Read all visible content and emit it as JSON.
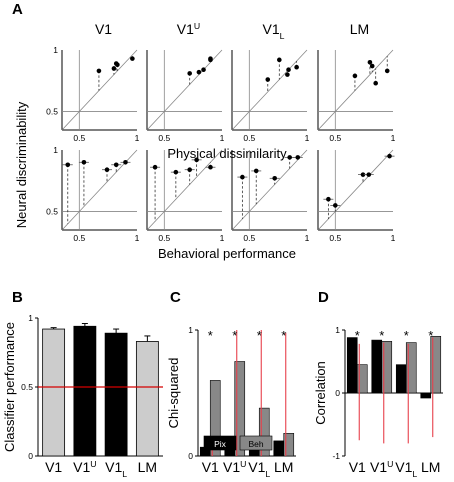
{
  "panel_letters": [
    "A",
    "B",
    "C",
    "D"
  ],
  "chart_data": [
    {
      "panel": "A",
      "type": "scatter",
      "area_titles": [
        "V1",
        "V1U",
        "V1L",
        "LM"
      ],
      "rows": [
        {
          "xlabel": "Physical dissimilarity",
          "xlim": [
            0.35,
            1.0
          ],
          "ylim": [
            0.35,
            1.0
          ],
          "xticks": [
            "0.5",
            "1"
          ],
          "yticks": [
            "0.5",
            "1"
          ],
          "series": [
            {
              "x": [
                0.67,
                0.8,
                0.82,
                0.83,
                0.96
              ],
              "y": [
                0.83,
                0.85,
                0.89,
                0.88,
                0.93
              ]
            },
            {
              "x": [
                0.72,
                0.8,
                0.84,
                0.9,
                0.9
              ],
              "y": [
                0.81,
                0.82,
                0.84,
                0.92,
                0.93
              ]
            },
            {
              "x": [
                0.66,
                0.76,
                0.83,
                0.84,
                0.91
              ],
              "y": [
                0.76,
                0.92,
                0.8,
                0.84,
                0.86
              ]
            },
            {
              "x": [
                0.67,
                0.8,
                0.82,
                0.85,
                0.95
              ],
              "y": [
                0.79,
                0.9,
                0.87,
                0.73,
                0.83
              ]
            }
          ]
        },
        {
          "xlabel": "Behavioral performance",
          "xlim": [
            0.35,
            1.0
          ],
          "ylim": [
            0.35,
            1.0
          ],
          "xticks": [
            "0.5",
            "1"
          ],
          "yticks": [
            "0.5",
            "1"
          ],
          "series": [
            {
              "x": [
                0.4,
                0.54,
                0.74,
                0.82,
                0.9
              ],
              "y": [
                0.88,
                0.9,
                0.84,
                0.88,
                0.9
              ]
            },
            {
              "x": [
                0.42,
                0.6,
                0.72,
                0.78,
                0.9
              ],
              "y": [
                0.86,
                0.82,
                0.84,
                0.92,
                0.86
              ]
            },
            {
              "x": [
                0.44,
                0.56,
                0.72,
                0.85,
                0.92
              ],
              "y": [
                0.78,
                0.83,
                0.77,
                0.94,
                0.94
              ]
            },
            {
              "x": [
                0.44,
                0.5,
                0.74,
                0.79,
                0.97
              ],
              "y": [
                0.6,
                0.55,
                0.8,
                0.8,
                0.95
              ]
            }
          ]
        }
      ],
      "ylabel": "Neural discriminability"
    },
    {
      "panel": "B",
      "type": "bar",
      "categories": [
        "V1",
        "V1U",
        "V1L",
        "LM"
      ],
      "values": [
        0.92,
        0.94,
        0.89,
        0.83
      ],
      "errors": [
        0.01,
        0.02,
        0.03,
        0.04
      ],
      "colors": [
        "#cccccc",
        "#000000",
        "#000000",
        "#cccccc"
      ],
      "chance_level": 0.5,
      "chance_color": "#d40000",
      "ylabel": "Classifier performance",
      "ylim": [
        0,
        1
      ],
      "yticks": [
        "0",
        "0.5",
        "1"
      ]
    },
    {
      "panel": "C",
      "type": "bar",
      "categories": [
        "V1",
        "V1U",
        "V1L",
        "LM"
      ],
      "series": [
        {
          "name": "Pix",
          "color": "#000000",
          "values": [
            0.07,
            0.08,
            0.07,
            0.12
          ]
        },
        {
          "name": "Beh",
          "color": "#888888",
          "values": [
            0.6,
            0.75,
            0.38,
            0.18
          ]
        }
      ],
      "intervals": [
        [
          0.0,
          0.12
        ],
        [
          0.0,
          1.0
        ],
        [
          0.0,
          1.0
        ],
        [
          0.0,
          0.98
        ]
      ],
      "interval_color": "#e8404b",
      "significance": [
        "*",
        "*",
        "*",
        "*"
      ],
      "ylabel": "Chi-squared",
      "ylim": [
        0,
        1
      ],
      "yticks": [
        "0",
        "1"
      ]
    },
    {
      "panel": "D",
      "type": "bar",
      "categories": [
        "V1",
        "V1U",
        "V1L",
        "LM"
      ],
      "series": [
        {
          "name": "Pix",
          "color": "#000000",
          "values": [
            0.88,
            0.84,
            0.45,
            -0.08
          ]
        },
        {
          "name": "Beh",
          "color": "#888888",
          "values": [
            0.45,
            0.82,
            0.8,
            0.9
          ]
        }
      ],
      "intervals": [
        [
          -0.75,
          0.78
        ],
        [
          -0.8,
          0.8
        ],
        [
          -0.8,
          0.78
        ],
        [
          -0.7,
          0.88
        ]
      ],
      "interval_color": "#e8404b",
      "significance": [
        "*",
        "*",
        "*",
        "*"
      ],
      "ylabel": "Correlation",
      "ylim": [
        -1,
        1
      ],
      "yticks": [
        "-1",
        "0",
        "1"
      ]
    }
  ]
}
